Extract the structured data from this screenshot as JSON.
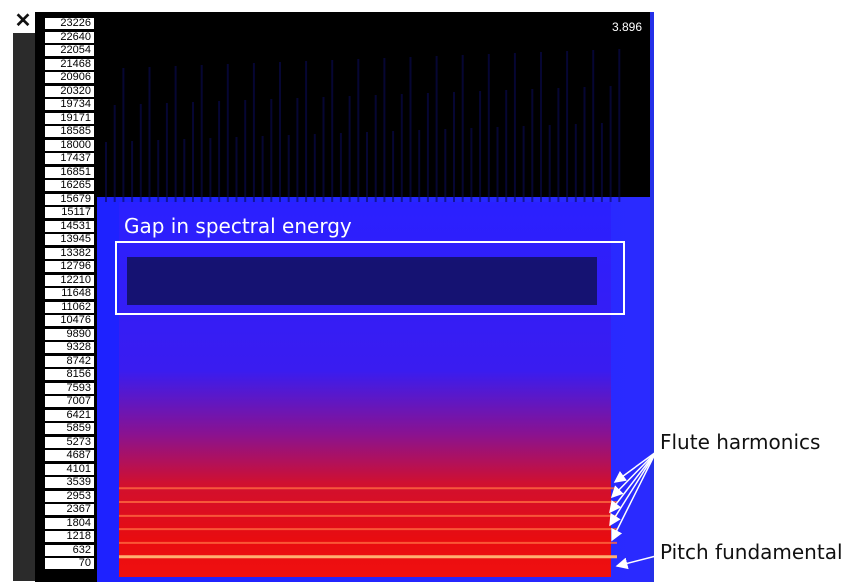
{
  "controls": {
    "close_label": "✕"
  },
  "chart_data": {
    "type": "heatmap",
    "title": "",
    "xlabel": "",
    "ylabel": "",
    "y_ticks": [
      "23226",
      "22640",
      "22054",
      "21468",
      "20906",
      "20320",
      "19734",
      "19171",
      "18585",
      "18000",
      "17437",
      "16851",
      "16265",
      "15679",
      "15117",
      "14531",
      "13945",
      "13382",
      "12796",
      "12210",
      "11648",
      "11062",
      "10476",
      "9890",
      "9328",
      "8742",
      "8156",
      "7593",
      "7007",
      "6421",
      "5859",
      "5273",
      "4687",
      "4101",
      "3539",
      "2953",
      "2367",
      "1804",
      "1218",
      "632",
      "70"
    ],
    "ylim": [
      70,
      23226
    ],
    "time_readout": "3.896",
    "colormap": [
      "#000000",
      "#1a1aff",
      "#ff1a1a",
      "#ffb070"
    ],
    "harmonics_hz": [
      632,
      1218,
      1804,
      2367,
      2953,
      3539
    ],
    "spectral_gap_hz": [
      11648,
      13382
    ],
    "annotations": {
      "gap_label": "Gap in spectral energy",
      "harmonics_label": "Flute harmonics",
      "fundamental_label": "Pitch fundamental"
    }
  }
}
